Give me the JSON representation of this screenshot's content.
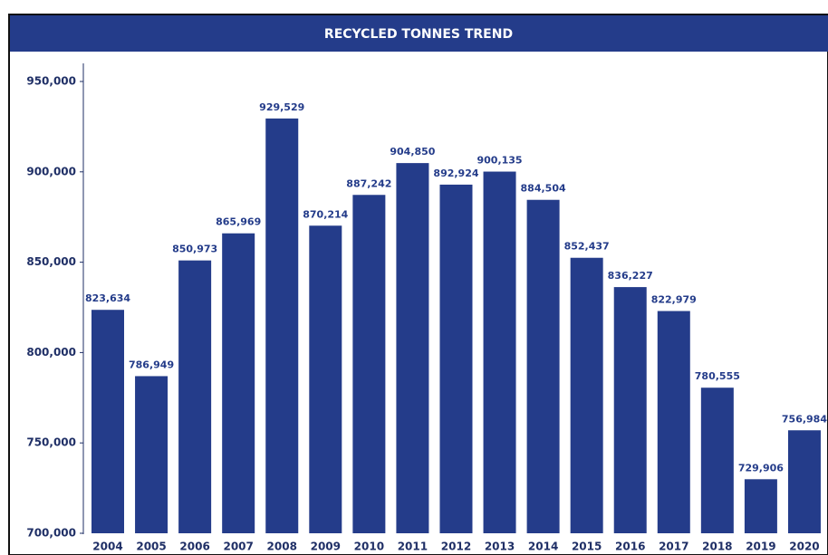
{
  "chart_data": {
    "type": "bar",
    "title": "RECYCLED TONNES TREND",
    "categories": [
      "2004",
      "2005",
      "2006",
      "2007",
      "2008",
      "2009",
      "2010",
      "2011",
      "2012",
      "2013",
      "2014",
      "2015",
      "2016",
      "2017",
      "2018",
      "2019",
      "2020"
    ],
    "values": [
      823634,
      786949,
      850973,
      865969,
      929529,
      870214,
      887242,
      904850,
      892924,
      900135,
      884504,
      852437,
      836227,
      822979,
      780555,
      729906,
      756984
    ],
    "value_labels": [
      "823,634",
      "786,949",
      "850,973",
      "865,969",
      "929,529",
      "870,214",
      "887,242",
      "904,850",
      "892,924",
      "900,135",
      "884,504",
      "852,437",
      "836,227",
      "822,979",
      "780,555",
      "729,906",
      "756,984"
    ],
    "color": "#243c8a",
    "ylim": [
      700000,
      950000
    ],
    "yticks": [
      {
        "value": 700000,
        "label": "700,000"
      },
      {
        "value": 750000,
        "label": "750,000"
      },
      {
        "value": 800000,
        "label": "800,000"
      },
      {
        "value": 850000,
        "label": "850,000"
      },
      {
        "value": 900000,
        "label": "900,000"
      },
      {
        "value": 950000,
        "label": "950,000"
      }
    ],
    "grid": false
  }
}
